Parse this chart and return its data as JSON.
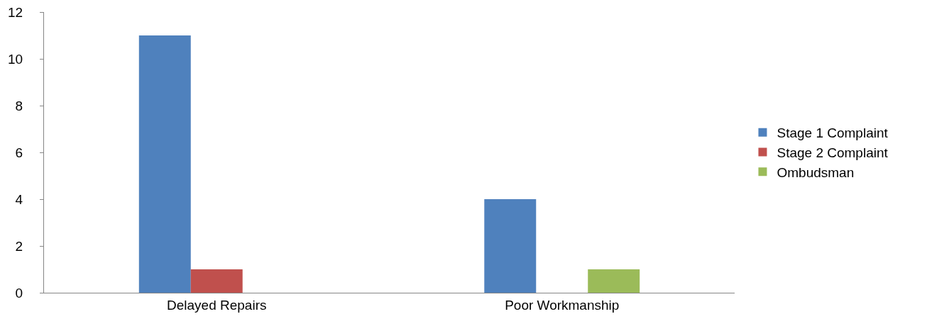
{
  "chart_data": {
    "type": "bar",
    "categories": [
      "Delayed Repairs",
      "Poor Workmanship"
    ],
    "series": [
      {
        "name": "Stage 1 Complaint",
        "color": "#4f81bd",
        "values": [
          11,
          4
        ]
      },
      {
        "name": "Stage 2 Complaint",
        "color": "#c0504d",
        "values": [
          1,
          0
        ]
      },
      {
        "name": "Ombudsman",
        "color": "#9bbb59",
        "values": [
          0,
          1
        ]
      }
    ],
    "ylim": [
      0,
      12
    ],
    "yticks": [
      0,
      2,
      4,
      6,
      8,
      10,
      12
    ],
    "grid": false,
    "legend": "right"
  }
}
